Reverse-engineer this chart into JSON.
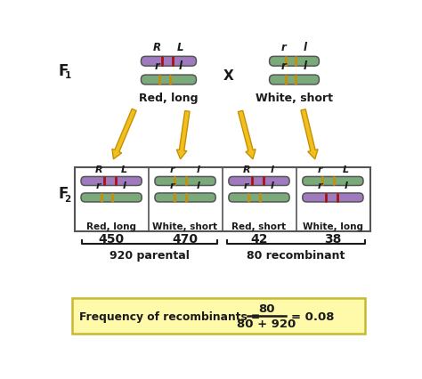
{
  "bg_color": "#ffffff",
  "purple_chrom": "#a07abe",
  "green_chrom": "#7aaa7a",
  "red_band": "#aa1111",
  "orange_band": "#c8900a",
  "arrow_color": "#f0c020",
  "arrow_edge": "#c89000",
  "box_bg": "#fffaaa",
  "box_edge": "#c8b830",
  "text_color": "#1a1a1a",
  "phenotype_f1_left": "Red, long",
  "phenotype_f1_right": "White, short",
  "f2_phenotypes": [
    "Red, long",
    "White, short",
    "Red, short",
    "White, long"
  ],
  "f2_counts": [
    "450",
    "470",
    "42",
    "38"
  ],
  "parental_label": "920 parental",
  "recombinant_label": "80 recombinant",
  "formula_text": "Frequency of recombinants = ",
  "formula_numerator": "80",
  "formula_denominator": "80 + 920",
  "formula_result": "= 0.08",
  "f2_top_labels": [
    [
      "R",
      "L"
    ],
    [
      "r",
      "l"
    ],
    [
      "R",
      "l"
    ],
    [
      "r",
      "L"
    ]
  ],
  "f2_bot_labels": [
    [
      "r",
      "l"
    ],
    [
      "r",
      "l"
    ],
    [
      "r",
      "l"
    ],
    [
      "r",
      "l"
    ]
  ],
  "f1_left_top_labels": [
    "R",
    "L"
  ],
  "f1_left_bot_labels": [
    "r",
    "l"
  ],
  "f1_right_top_labels": [
    "r",
    "l"
  ],
  "f1_right_bot_labels": [
    "r",
    "l"
  ]
}
